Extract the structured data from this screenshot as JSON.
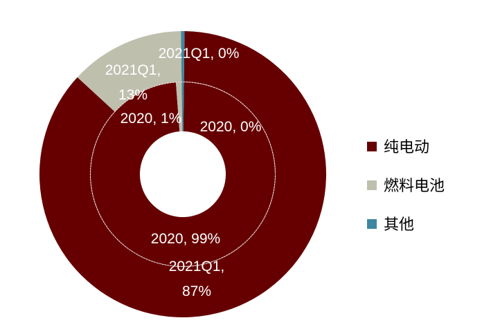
{
  "chart_data": {
    "type": "donut",
    "legend": {
      "placement": "right",
      "entries": [
        {
          "name": "纯电动",
          "color": "#660000"
        },
        {
          "name": "燃料电池",
          "color": "#bfbfae"
        },
        {
          "name": "其他",
          "color": "#3f87a0"
        }
      ]
    },
    "rings": [
      {
        "ring": "outer",
        "name": "2021Q1",
        "values": [
          87,
          13,
          0
        ],
        "labels": [
          {
            "lines": [
              "2021Q1,",
              "87%"
            ]
          },
          {
            "lines": [
              "2021Q1,",
              "13%"
            ]
          },
          {
            "lines": [
              "2021Q1, 0%"
            ]
          }
        ]
      },
      {
        "ring": "inner",
        "name": "2020",
        "values": [
          99,
          1,
          0
        ],
        "labels": [
          {
            "lines": [
              "2020, 99%"
            ]
          },
          {
            "lines": [
              "2020, 1%"
            ]
          },
          {
            "lines": [
              "2020, 0%"
            ]
          }
        ]
      }
    ]
  }
}
